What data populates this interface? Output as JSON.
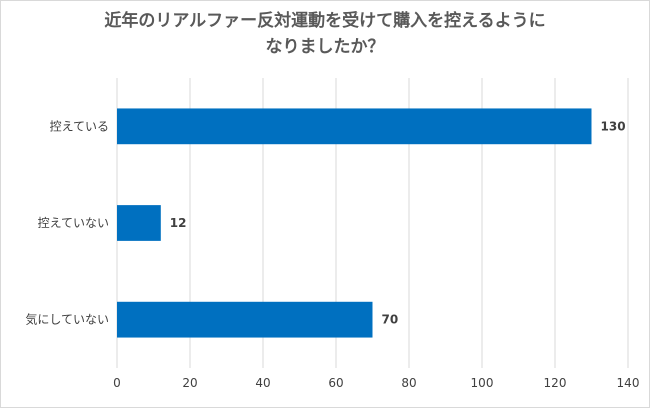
{
  "chart_data": {
    "type": "bar",
    "orientation": "horizontal",
    "title_lines": [
      "近年のリアルファー反対運動を受けて購入を控えるように",
      "なりましたか？"
    ],
    "categories": [
      "控えている",
      "控えていない",
      "気にしていない"
    ],
    "values": [
      130,
      12,
      70
    ],
    "xlim": [
      0,
      140
    ],
    "xticks": [
      0,
      20,
      40,
      60,
      80,
      100,
      120,
      140
    ],
    "grid": true,
    "bar_color": "#0070c0",
    "data_labels": true
  }
}
